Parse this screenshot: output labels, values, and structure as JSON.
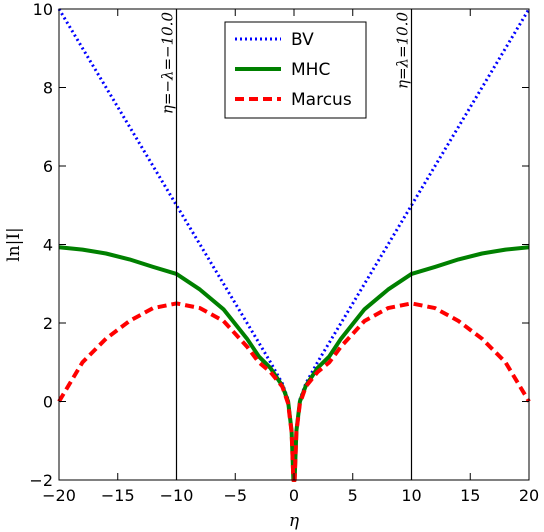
{
  "chart_data": {
    "type": "line",
    "xlabel": "η",
    "ylabel": "ln|I|",
    "xlim": [
      -20,
      20
    ],
    "ylim": [
      -2,
      10
    ],
    "xticks": [
      "−20",
      "−15",
      "−10",
      "−5",
      "0",
      "5",
      "10",
      "15",
      "20"
    ],
    "yticks": [
      "−2",
      "0",
      "2",
      "4",
      "6",
      "8",
      "10"
    ],
    "grid": false,
    "legend_position": "top-center",
    "annotations": [
      {
        "text": "η=−λ=−10.0",
        "x": -10
      },
      {
        "text": "η=λ=10.0",
        "x": 10
      }
    ],
    "series": [
      {
        "name": "BV",
        "color": "#0000ff",
        "style": "dotted",
        "x": [
          -20,
          -15,
          -10,
          -5,
          -3,
          -2,
          -1,
          -0.5,
          -0.2,
          -0.05,
          0.05,
          0.2,
          0.5,
          1,
          2,
          3,
          5,
          10,
          15,
          20
        ],
        "y": [
          10.0,
          7.5,
          5.0,
          2.5,
          1.5,
          1.0,
          0.46,
          0.05,
          -0.71,
          -2.0,
          -2.0,
          -0.71,
          0.05,
          0.46,
          1.0,
          1.5,
          2.5,
          5.0,
          7.5,
          10.0
        ]
      },
      {
        "name": "MHC",
        "color": "#008000",
        "style": "solid",
        "x": [
          -20,
          -18,
          -16,
          -14,
          -12,
          -10,
          -8,
          -6,
          -4,
          -3,
          -2,
          -1,
          -0.5,
          -0.2,
          -0.05,
          0.05,
          0.2,
          0.5,
          1,
          2,
          3,
          4,
          6,
          8,
          10,
          12,
          14,
          16,
          18,
          20
        ],
        "y": [
          3.93,
          3.87,
          3.77,
          3.62,
          3.43,
          3.25,
          2.85,
          2.35,
          1.6,
          1.15,
          0.85,
          0.4,
          0.0,
          -0.75,
          -2.0,
          -2.0,
          -0.75,
          0.0,
          0.4,
          0.85,
          1.15,
          1.6,
          2.35,
          2.85,
          3.25,
          3.43,
          3.62,
          3.77,
          3.87,
          3.93
        ]
      },
      {
        "name": "Marcus",
        "color": "#ff0000",
        "style": "dashed",
        "x": [
          -20,
          -18,
          -16,
          -14,
          -12,
          -10,
          -8,
          -6,
          -4,
          -3,
          -2,
          -1,
          -0.5,
          -0.2,
          -0.05,
          0.05,
          0.2,
          0.5,
          1,
          2,
          3,
          4,
          6,
          8,
          10,
          12,
          14,
          16,
          18,
          20
        ],
        "y": [
          0.0,
          1.0,
          1.6,
          2.05,
          2.38,
          2.5,
          2.38,
          2.05,
          1.4,
          1.0,
          0.75,
          0.38,
          -0.05,
          -0.78,
          -2.0,
          -2.0,
          -0.78,
          -0.05,
          0.38,
          0.75,
          1.0,
          1.4,
          2.05,
          2.38,
          2.5,
          2.38,
          2.05,
          1.6,
          1.0,
          0.0
        ]
      }
    ]
  }
}
